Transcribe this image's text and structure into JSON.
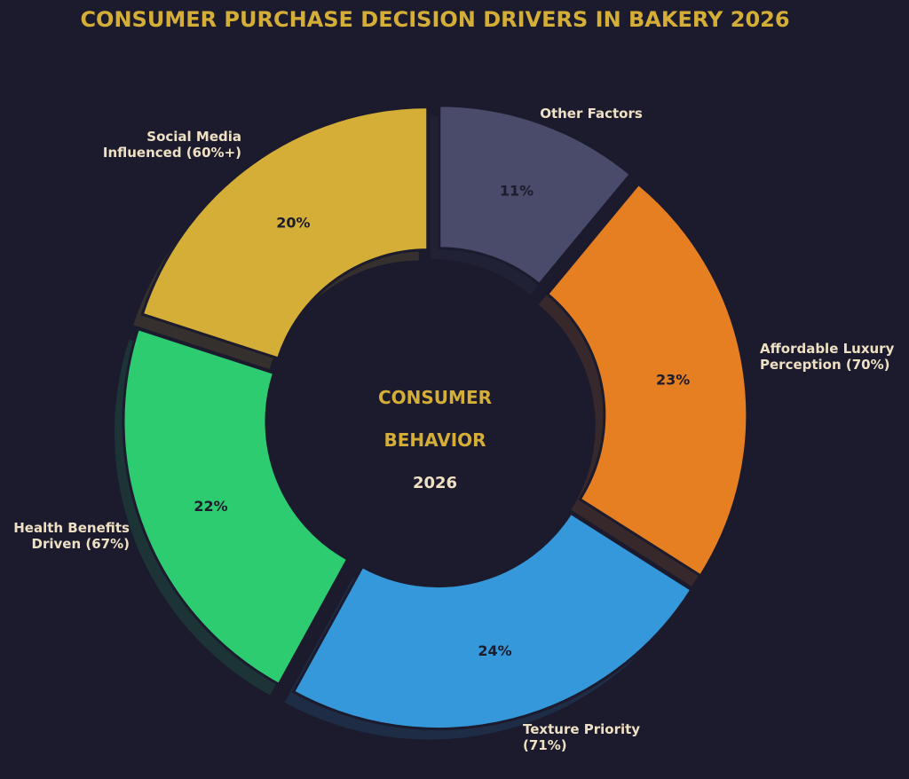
{
  "chart_data": {
    "type": "pie",
    "variant": "donut",
    "title": "CONSUMER PURCHASE DECISION DRIVERS IN BAKERY 2026",
    "center_text": [
      "CONSUMER",
      "BEHAVIOR",
      "2026"
    ],
    "start_angle_deg": 90,
    "direction": "clockwise",
    "slices": [
      {
        "label": "Other Factors",
        "value": 11,
        "pct_label": "11%",
        "color": "#4a4a6a"
      },
      {
        "label": "Affordable Luxury Perception (70%)",
        "value": 23,
        "pct_label": "23%",
        "color": "#e67e22"
      },
      {
        "label": "Texture Priority (71%)",
        "value": 24,
        "pct_label": "24%",
        "color": "#3498db"
      },
      {
        "label": "Health Benefits Driven (67%)",
        "value": 22,
        "pct_label": "22%",
        "color": "#2ecc71"
      },
      {
        "label": "Social Media Influenced (60%+)",
        "value": 20,
        "pct_label": "20%",
        "color": "#d4ae37"
      }
    ]
  }
}
